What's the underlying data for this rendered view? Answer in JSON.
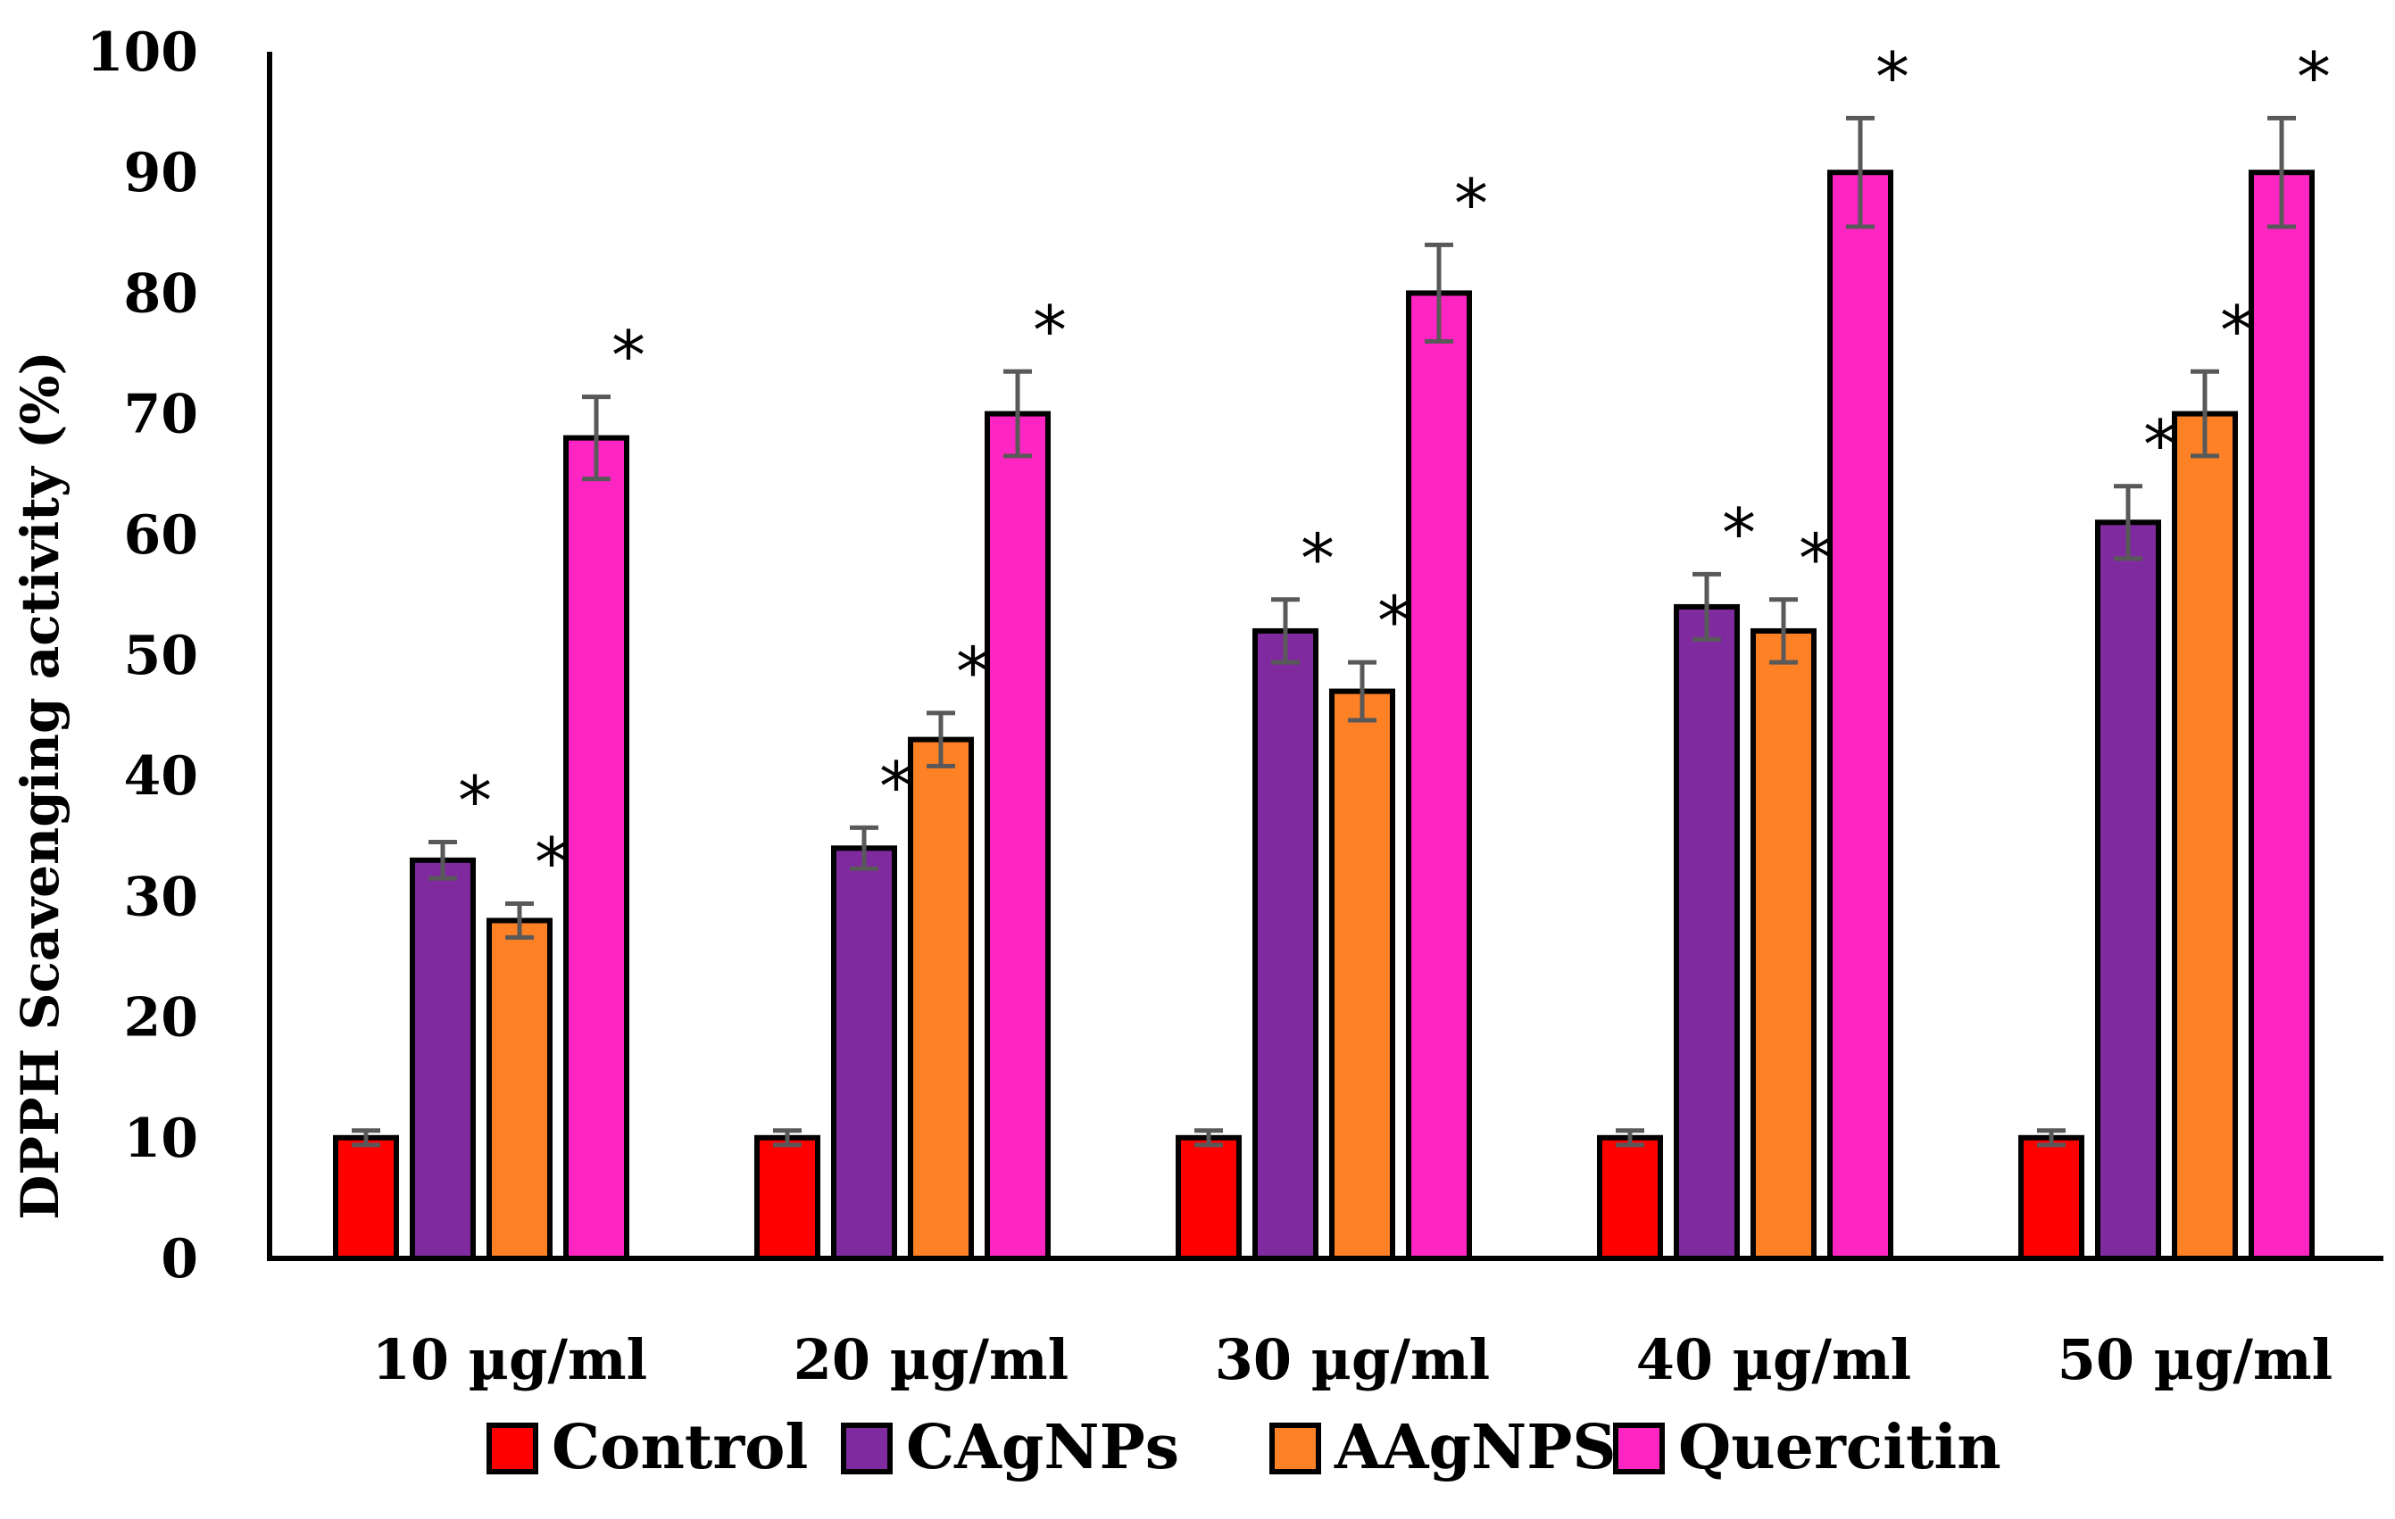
{
  "chart_data": {
    "type": "bar",
    "title": "",
    "xlabel": "",
    "ylabel": "DPPH Scavenging activity (%)",
    "ylim": [
      0,
      100
    ],
    "yticks": [
      0,
      10,
      20,
      30,
      40,
      50,
      60,
      70,
      80,
      90,
      100
    ],
    "grid": false,
    "legend_position": "bottom",
    "categories": [
      "10 µg/ml",
      "20 µg/ml",
      "30 µg/ml",
      "40 µg/ml",
      "50 µg/ml"
    ],
    "series": [
      {
        "name": "Control",
        "color": "#ff0000",
        "values": [
          10,
          10,
          10,
          10,
          10
        ],
        "errors": [
          0.6,
          0.6,
          0.6,
          0.6,
          0.6
        ],
        "significant": [
          false,
          false,
          false,
          false,
          false
        ]
      },
      {
        "name": "CAgNPs",
        "color": "#7f2a9f",
        "values": [
          33,
          34,
          52,
          54,
          61
        ],
        "errors": [
          1.5,
          1.7,
          2.6,
          2.7,
          3.0
        ],
        "significant": [
          true,
          true,
          true,
          true,
          true
        ]
      },
      {
        "name": "AAgNPS",
        "color": "#ff8125",
        "values": [
          28,
          43,
          47,
          52,
          70
        ],
        "errors": [
          1.4,
          2.2,
          2.4,
          2.6,
          3.5
        ],
        "significant": [
          true,
          true,
          true,
          true,
          true
        ]
      },
      {
        "name": "Quercitin",
        "color": "#ff25c3",
        "values": [
          68,
          70,
          80,
          90,
          90
        ],
        "errors": [
          3.4,
          3.5,
          4.0,
          4.5,
          4.5
        ],
        "significant": [
          true,
          true,
          true,
          true,
          true
        ]
      }
    ],
    "significance_marker": "*"
  }
}
